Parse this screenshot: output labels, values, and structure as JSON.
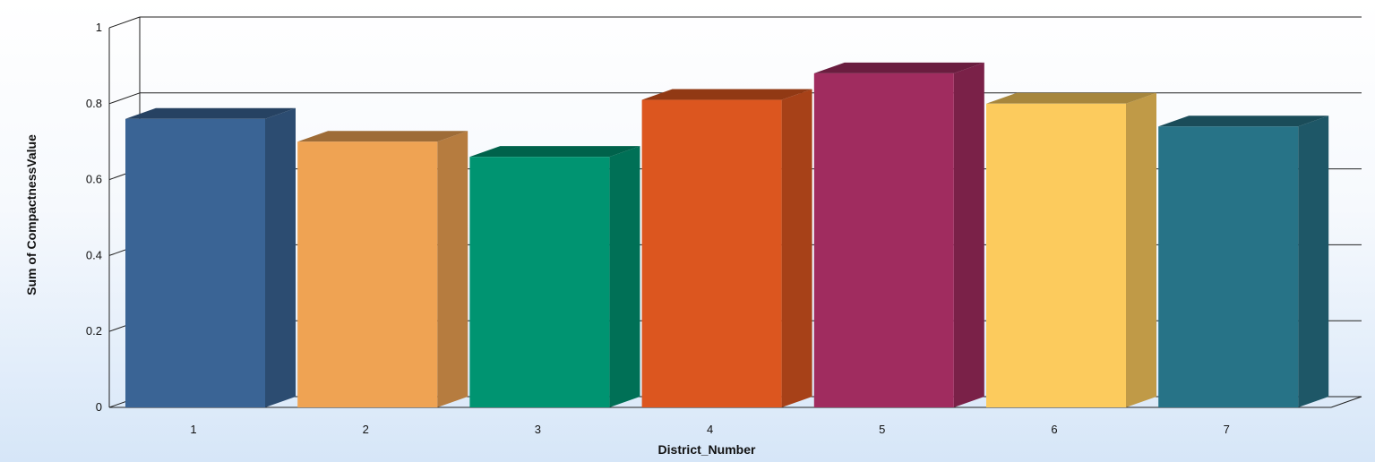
{
  "chart_data": {
    "type": "bar",
    "title": "",
    "xlabel": "District_Number",
    "ylabel": "Sum of CompactnessValue",
    "categories": [
      "1",
      "2",
      "3",
      "4",
      "5",
      "6",
      "7"
    ],
    "values": [
      0.76,
      0.7,
      0.66,
      0.81,
      0.88,
      0.8,
      0.74
    ],
    "ylim": [
      0,
      1
    ],
    "yticks": [
      "0",
      "0.2",
      "0.4",
      "0.6",
      "0.8",
      "1"
    ],
    "grid": true,
    "three_d": true,
    "colors": [
      "#3a6495",
      "#efa353",
      "#009471",
      "#dc561f",
      "#a02c5f",
      "#fccb5d",
      "#277387"
    ]
  }
}
